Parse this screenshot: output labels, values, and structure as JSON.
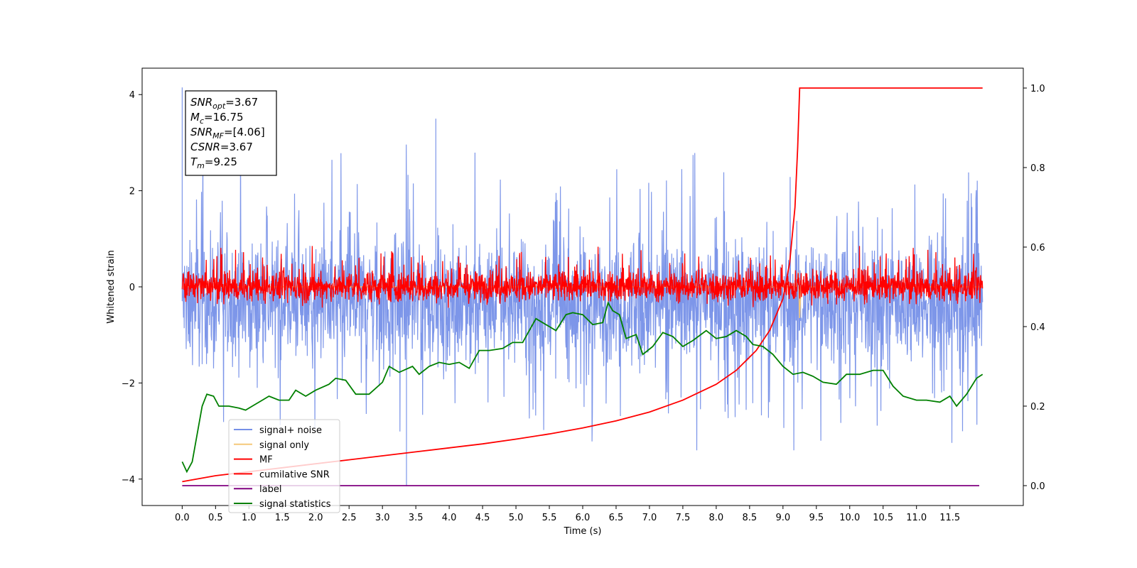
{
  "chart_data": {
    "type": "line",
    "title": "",
    "xlabel": "Time (s)",
    "ylabel": "Whitened strain",
    "xlim": [
      -0.6,
      12.6
    ],
    "ylim": [
      -4.55,
      4.55
    ],
    "y2lim": [
      -0.05,
      1.05
    ],
    "x_ticks": [
      "0.0",
      "0.5",
      "1.0",
      "1.5",
      "2.0",
      "2.5",
      "3.0",
      "3.5",
      "4.0",
      "4.5",
      "5.0",
      "5.5",
      "6.0",
      "6.5",
      "7.0",
      "7.5",
      "8.0",
      "8.5",
      "9.0",
      "9.5",
      "10.0",
      "10.5",
      "11.0",
      "11.5"
    ],
    "y_ticks": [
      "−4",
      "−2",
      "0",
      "2",
      "4"
    ],
    "y2_ticks": [
      "0.0",
      "0.2",
      "0.4",
      "0.6",
      "0.8",
      "1.0"
    ],
    "grid": false,
    "legend_position": "lower-left",
    "annotation": {
      "lines": [
        {
          "base": "SNR",
          "sub": "opt",
          "value": "=3.67"
        },
        {
          "base": "M",
          "sub": "c",
          "value": "=16.75"
        },
        {
          "base": "SNR",
          "sub": "MF",
          "value": "=[4.06]"
        },
        {
          "base": "CSNR",
          "sub": "",
          "value": "=3.67"
        },
        {
          "base": "T",
          "sub": "m",
          "value": "=9.25"
        }
      ]
    },
    "series": [
      {
        "name": "signal+ noise",
        "color": "#7690e8",
        "axis": "left",
        "x_range": [
          0,
          11.99
        ],
        "mean": -0.3,
        "envelope": [
          -2.8,
          3.2
        ],
        "extremes": [
          {
            "x": 0.0,
            "y": 4.15
          },
          {
            "x": 3.36,
            "y": -4.15
          },
          {
            "x": 3.8,
            "y": 3.5
          }
        ]
      },
      {
        "name": "signal only",
        "color": "#f5c97a",
        "axis": "left",
        "x_range": [
          0,
          11.99
        ],
        "values_note": "",
        "points": [
          {
            "x": 0,
            "y": 0
          },
          {
            "x": 9.2,
            "y": 0
          },
          {
            "x": 9.23,
            "y": 0.3
          },
          {
            "x": 9.25,
            "y": -0.65
          },
          {
            "x": 9.27,
            "y": 0
          },
          {
            "x": 11.99,
            "y": 0
          }
        ]
      },
      {
        "name": "MF",
        "color": "#ff0000",
        "axis": "left",
        "x_range": [
          0,
          11.99
        ],
        "mean": 0.0,
        "envelope": [
          -0.45,
          0.85
        ]
      },
      {
        "name": "cumilative SNR",
        "color": "#ff0000",
        "axis": "right",
        "points": [
          {
            "x": 0.0,
            "y": 0.01
          },
          {
            "x": 0.5,
            "y": 0.025
          },
          {
            "x": 1.0,
            "y": 0.035
          },
          {
            "x": 1.5,
            "y": 0.045
          },
          {
            "x": 2.0,
            "y": 0.055
          },
          {
            "x": 2.5,
            "y": 0.065
          },
          {
            "x": 3.0,
            "y": 0.075
          },
          {
            "x": 3.5,
            "y": 0.085
          },
          {
            "x": 4.0,
            "y": 0.095
          },
          {
            "x": 4.5,
            "y": 0.105
          },
          {
            "x": 5.0,
            "y": 0.117
          },
          {
            "x": 5.5,
            "y": 0.13
          },
          {
            "x": 6.0,
            "y": 0.145
          },
          {
            "x": 6.5,
            "y": 0.163
          },
          {
            "x": 7.0,
            "y": 0.185
          },
          {
            "x": 7.5,
            "y": 0.215
          },
          {
            "x": 8.0,
            "y": 0.255
          },
          {
            "x": 8.3,
            "y": 0.29
          },
          {
            "x": 8.6,
            "y": 0.34
          },
          {
            "x": 8.8,
            "y": 0.39
          },
          {
            "x": 9.0,
            "y": 0.47
          },
          {
            "x": 9.1,
            "y": 0.56
          },
          {
            "x": 9.18,
            "y": 0.7
          },
          {
            "x": 9.22,
            "y": 0.85
          },
          {
            "x": 9.25,
            "y": 1.0
          },
          {
            "x": 11.99,
            "y": 1.0
          }
        ]
      },
      {
        "name": "label",
        "color": "#800080",
        "axis": "right",
        "points": [
          {
            "x": 0.0,
            "y": 0.0
          },
          {
            "x": 11.94,
            "y": 0.0
          }
        ]
      },
      {
        "name": "signal statistics",
        "color": "#008000",
        "axis": "right",
        "points": [
          {
            "x": 0.0,
            "y": 0.06
          },
          {
            "x": 0.07,
            "y": 0.035
          },
          {
            "x": 0.15,
            "y": 0.06
          },
          {
            "x": 0.3,
            "y": 0.2
          },
          {
            "x": 0.37,
            "y": 0.23
          },
          {
            "x": 0.47,
            "y": 0.225
          },
          {
            "x": 0.55,
            "y": 0.2
          },
          {
            "x": 0.7,
            "y": 0.2
          },
          {
            "x": 0.85,
            "y": 0.195
          },
          {
            "x": 0.95,
            "y": 0.19
          },
          {
            "x": 1.05,
            "y": 0.2
          },
          {
            "x": 1.2,
            "y": 0.215
          },
          {
            "x": 1.3,
            "y": 0.225
          },
          {
            "x": 1.45,
            "y": 0.215
          },
          {
            "x": 1.6,
            "y": 0.215
          },
          {
            "x": 1.7,
            "y": 0.24
          },
          {
            "x": 1.85,
            "y": 0.225
          },
          {
            "x": 2.0,
            "y": 0.24
          },
          {
            "x": 2.2,
            "y": 0.255
          },
          {
            "x": 2.3,
            "y": 0.27
          },
          {
            "x": 2.45,
            "y": 0.265
          },
          {
            "x": 2.6,
            "y": 0.23
          },
          {
            "x": 2.8,
            "y": 0.23
          },
          {
            "x": 3.0,
            "y": 0.26
          },
          {
            "x": 3.1,
            "y": 0.3
          },
          {
            "x": 3.25,
            "y": 0.285
          },
          {
            "x": 3.45,
            "y": 0.3
          },
          {
            "x": 3.55,
            "y": 0.28
          },
          {
            "x": 3.7,
            "y": 0.3
          },
          {
            "x": 3.85,
            "y": 0.31
          },
          {
            "x": 4.0,
            "y": 0.305
          },
          {
            "x": 4.15,
            "y": 0.31
          },
          {
            "x": 4.3,
            "y": 0.295
          },
          {
            "x": 4.45,
            "y": 0.34
          },
          {
            "x": 4.6,
            "y": 0.34
          },
          {
            "x": 4.8,
            "y": 0.345
          },
          {
            "x": 4.95,
            "y": 0.36
          },
          {
            "x": 5.1,
            "y": 0.36
          },
          {
            "x": 5.2,
            "y": 0.39
          },
          {
            "x": 5.3,
            "y": 0.42
          },
          {
            "x": 5.5,
            "y": 0.4
          },
          {
            "x": 5.6,
            "y": 0.39
          },
          {
            "x": 5.75,
            "y": 0.43
          },
          {
            "x": 5.85,
            "y": 0.435
          },
          {
            "x": 6.0,
            "y": 0.43
          },
          {
            "x": 6.15,
            "y": 0.405
          },
          {
            "x": 6.3,
            "y": 0.41
          },
          {
            "x": 6.38,
            "y": 0.46
          },
          {
            "x": 6.45,
            "y": 0.44
          },
          {
            "x": 6.55,
            "y": 0.43
          },
          {
            "x": 6.65,
            "y": 0.37
          },
          {
            "x": 6.8,
            "y": 0.38
          },
          {
            "x": 6.9,
            "y": 0.33
          },
          {
            "x": 7.05,
            "y": 0.35
          },
          {
            "x": 7.2,
            "y": 0.385
          },
          {
            "x": 7.35,
            "y": 0.375
          },
          {
            "x": 7.5,
            "y": 0.35
          },
          {
            "x": 7.65,
            "y": 0.365
          },
          {
            "x": 7.85,
            "y": 0.39
          },
          {
            "x": 8.0,
            "y": 0.37
          },
          {
            "x": 8.15,
            "y": 0.375
          },
          {
            "x": 8.3,
            "y": 0.39
          },
          {
            "x": 8.45,
            "y": 0.375
          },
          {
            "x": 8.55,
            "y": 0.355
          },
          {
            "x": 8.7,
            "y": 0.35
          },
          {
            "x": 8.85,
            "y": 0.33
          },
          {
            "x": 9.0,
            "y": 0.3
          },
          {
            "x": 9.15,
            "y": 0.28
          },
          {
            "x": 9.3,
            "y": 0.285
          },
          {
            "x": 9.45,
            "y": 0.275
          },
          {
            "x": 9.6,
            "y": 0.26
          },
          {
            "x": 9.8,
            "y": 0.255
          },
          {
            "x": 9.95,
            "y": 0.28
          },
          {
            "x": 10.15,
            "y": 0.28
          },
          {
            "x": 10.35,
            "y": 0.29
          },
          {
            "x": 10.5,
            "y": 0.29
          },
          {
            "x": 10.65,
            "y": 0.25
          },
          {
            "x": 10.8,
            "y": 0.225
          },
          {
            "x": 11.0,
            "y": 0.215
          },
          {
            "x": 11.15,
            "y": 0.215
          },
          {
            "x": 11.35,
            "y": 0.21
          },
          {
            "x": 11.5,
            "y": 0.225
          },
          {
            "x": 11.6,
            "y": 0.2
          },
          {
            "x": 11.75,
            "y": 0.23
          },
          {
            "x": 11.9,
            "y": 0.27
          },
          {
            "x": 11.99,
            "y": 0.28
          }
        ]
      }
    ]
  }
}
